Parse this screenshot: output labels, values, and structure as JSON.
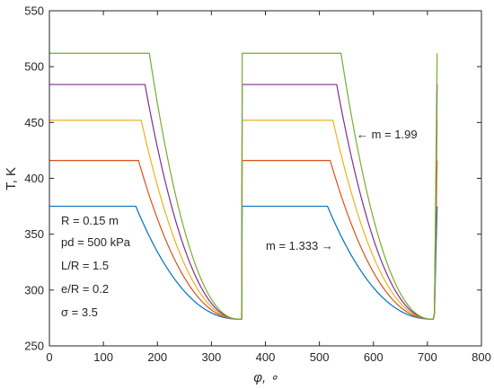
{
  "chart_data": {
    "type": "line",
    "xlabel": "φ, ∘",
    "ylabel": "T, K",
    "xlim": [
      0,
      800
    ],
    "ylim": [
      250,
      550
    ],
    "xticks": [
      0,
      100,
      200,
      300,
      400,
      500,
      600,
      700,
      800
    ],
    "yticks": [
      250,
      300,
      350,
      400,
      450,
      500,
      550
    ],
    "xtick_labels": [
      "0",
      "100",
      "200",
      "300",
      "400",
      "500",
      "600",
      "700",
      "800"
    ],
    "ytick_labels": [
      "250",
      "300",
      "350",
      "400",
      "450",
      "500",
      "550"
    ],
    "grid": false,
    "series": [
      {
        "color": "#0072BD",
        "plateau": 375,
        "x_drop": 160,
        "x_cycle2_drop": 515
      },
      {
        "color": "#D95319",
        "plateau": 416,
        "x_drop": 165,
        "x_cycle2_drop": 520
      },
      {
        "color": "#EDB120",
        "plateau": 452,
        "x_drop": 170,
        "x_cycle2_drop": 525
      },
      {
        "color": "#7E2F8E",
        "plateau": 484,
        "x_drop": 177,
        "x_cycle2_drop": 532
      },
      {
        "color": "#77AC30",
        "plateau": 512,
        "x_drop": 185,
        "x_cycle2_drop": 540
      }
    ],
    "min_temperature": 274,
    "x_cycle_start": [
      0,
      357,
      712
    ],
    "x_end": 718,
    "annotations": {
      "params": [
        "R = 0.15 m",
        "pd = 500 kPa",
        "L/R = 1.5",
        "e/R = 0.2",
        "σ = 3.5"
      ],
      "m_top": "← m = 1.99",
      "m_bottom": "m = 1.333 →"
    }
  }
}
